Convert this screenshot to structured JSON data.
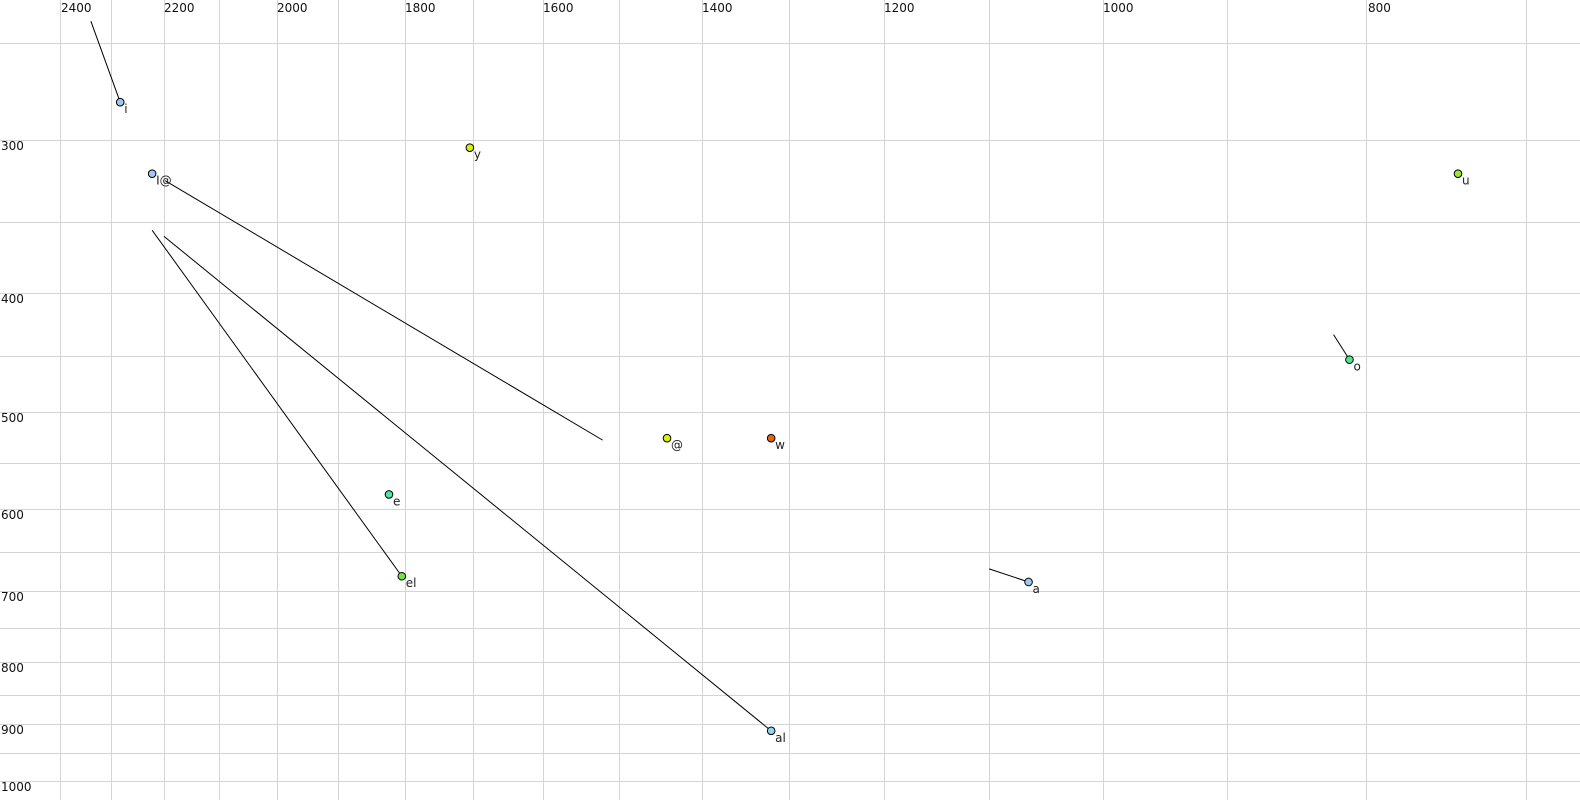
{
  "chart_data": {
    "type": "scatter",
    "title": "",
    "xlabel": "",
    "ylabel": "",
    "x_axis": {
      "reversed": true,
      "position": "top",
      "scale": "nonlinear (auditory)",
      "ticks": [
        2400,
        2200,
        2000,
        1800,
        1600,
        1400,
        1200,
        1000,
        800
      ]
    },
    "y_axis": {
      "reversed": false,
      "position": "left",
      "scale": "nonlinear (auditory)",
      "ticks": [
        300,
        400,
        500,
        600,
        700,
        800,
        900,
        1000
      ]
    },
    "grid": true,
    "points": [
      {
        "label": "i",
        "x": 2285,
        "y": 279,
        "color": "#9cc8f2",
        "from": [
          2342,
          234
        ]
      },
      {
        "label": "I@",
        "x": 2223,
        "y": 322,
        "color": "#9cc8f2",
        "to": [
          1525,
          529
        ]
      },
      {
        "label": "y",
        "x": 1706,
        "y": 305,
        "color": "#dcf000"
      },
      {
        "label": "u",
        "x": 740,
        "y": 322,
        "color": "#9ce830"
      },
      {
        "label": "o",
        "x": 814,
        "y": 456,
        "color": "#4ce88c",
        "from": [
          826,
          435
        ]
      },
      {
        "label": "@",
        "x": 1444,
        "y": 527,
        "color": "#dcf000"
      },
      {
        "label": "w",
        "x": 1324,
        "y": 527,
        "color": "#e8640c"
      },
      {
        "label": "e",
        "x": 1825,
        "y": 585,
        "color": "#4ce89c"
      },
      {
        "label": "el",
        "x": 1805,
        "y": 682,
        "color": "#6ce840",
        "from": [
          2223,
          359
        ]
      },
      {
        "label": "a",
        "x": 1068,
        "y": 689,
        "color": "#9cc8f2",
        "from": [
          1104,
          673
        ]
      },
      {
        "label": "al",
        "x": 1324,
        "y": 912,
        "color": "#90d4f4",
        "from": [
          2200,
          363
        ]
      }
    ]
  }
}
